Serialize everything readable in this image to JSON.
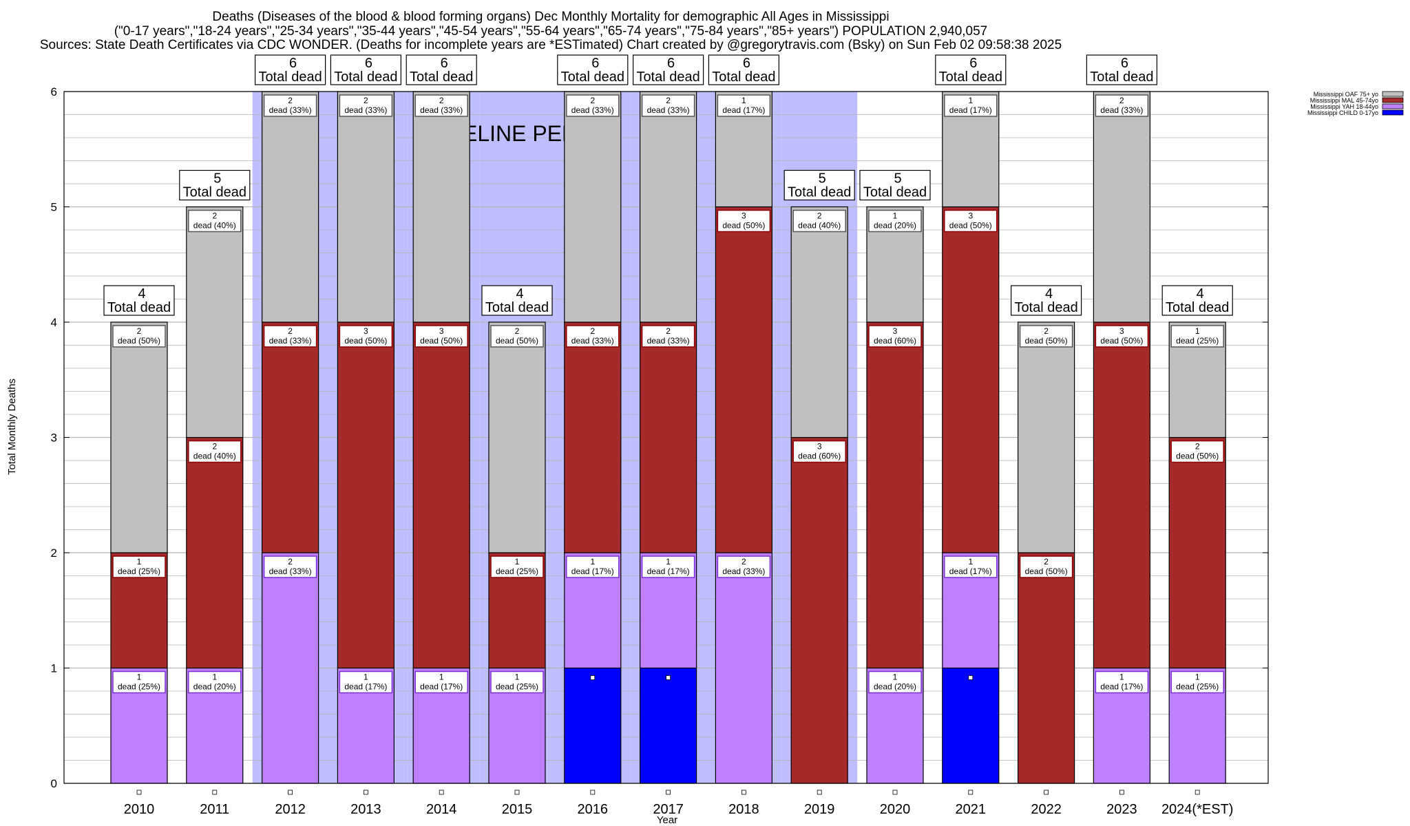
{
  "header": {
    "line1": "Deaths (Diseases of the blood & blood forming organs) Dec Monthly Mortality for demographic All Ages in Mississippi",
    "line2": "(\"0-17 years\",\"18-24 years\",\"25-34 years\",\"35-44 years\",\"45-54 years\",\"55-64 years\",\"65-74 years\",\"75-84 years\",\"85+ years\") POPULATION 2,940,057",
    "line3": "Sources: State Death Certificates via CDC WONDER. (Deaths for incomplete years are *ESTimated)                Chart created by @gregorytravis.com (Bsky) on Sun Feb 02 09:58:38 2025"
  },
  "chart_data": {
    "type": "bar",
    "stacked": true,
    "xlabel": "Year",
    "ylabel": "Total Monthly Deaths",
    "ylim": [
      0,
      6
    ],
    "yticks": [
      0,
      1,
      2,
      3,
      4,
      5,
      6
    ],
    "grid": true,
    "legend_position": "top-right",
    "baseline_label": "BASELINE PERIOD",
    "baseline_years": [
      "2012",
      "2013",
      "2014",
      "2015",
      "2016",
      "2017",
      "2018",
      "2019"
    ],
    "total_label": "Total dead",
    "categories": [
      "2010",
      "2011",
      "2012",
      "2013",
      "2014",
      "2015",
      "2016",
      "2017",
      "2018",
      "2019",
      "2020",
      "2021",
      "2022",
      "2023",
      "2024(*EST)"
    ],
    "series": [
      {
        "name": "Mississippi CHILD 0-17yo",
        "color": "#0000ff",
        "values": [
          0,
          0,
          0,
          0,
          0,
          0,
          1,
          1,
          0,
          0,
          0,
          1,
          0,
          0,
          0
        ],
        "labels": [
          "",
          "",
          "",
          "",
          "",
          "",
          "",
          "",
          "",
          "",
          "",
          "",
          "",
          "",
          ""
        ]
      },
      {
        "name": "Mississippi YAH 18-44yo",
        "color": "#bf80ff",
        "values": [
          1,
          1,
          2,
          1,
          1,
          1,
          1,
          1,
          2,
          0,
          1,
          1,
          0,
          1,
          1
        ],
        "labels": [
          "dead (25%)",
          "dead (20%)",
          "dead (33%)",
          "dead (17%)",
          "dead (17%)",
          "dead (25%)",
          "dead (17%)",
          "dead (17%)",
          "dead (33%)",
          "",
          "dead (20%)",
          "dead (17%)",
          "",
          "dead (17%)",
          "dead (25%)"
        ]
      },
      {
        "name": "Mississippi MAL 45-74yo",
        "color": "#a52a2a",
        "values": [
          1,
          2,
          2,
          3,
          3,
          1,
          2,
          2,
          3,
          3,
          3,
          3,
          2,
          3,
          2
        ],
        "labels": [
          "dead (25%)",
          "dead (40%)",
          "dead (33%)",
          "dead (50%)",
          "dead (50%)",
          "dead (25%)",
          "dead (33%)",
          "dead (33%)",
          "dead (50%)",
          "dead (60%)",
          "dead (60%)",
          "dead (50%)",
          "dead (50%)",
          "dead (50%)",
          "dead (50%)"
        ]
      },
      {
        "name": "Mississippi OAF 75+ yo",
        "color": "#c0c0c0",
        "values": [
          2,
          2,
          2,
          2,
          2,
          2,
          2,
          2,
          1,
          2,
          1,
          1,
          2,
          2,
          1
        ],
        "labels": [
          "dead (50%)",
          "dead (40%)",
          "dead (33%)",
          "dead (33%)",
          "dead (33%)",
          "dead (50%)",
          "dead (33%)",
          "dead (33%)",
          "dead (17%)",
          "dead (40%)",
          "dead (20%)",
          "dead (17%)",
          "dead (50%)",
          "dead (33%)",
          "dead (25%)"
        ]
      }
    ],
    "totals": [
      4,
      5,
      6,
      6,
      6,
      4,
      6,
      6,
      6,
      5,
      5,
      6,
      4,
      6,
      4
    ]
  },
  "colors": {
    "baseline_band": "#bfbfff",
    "grid": "#b3b3b3",
    "label_border_child": "#0000ff",
    "label_border_yah": "#7b2fd6",
    "label_border_mal": "#8b0000",
    "label_border_oaf": "#555555"
  }
}
